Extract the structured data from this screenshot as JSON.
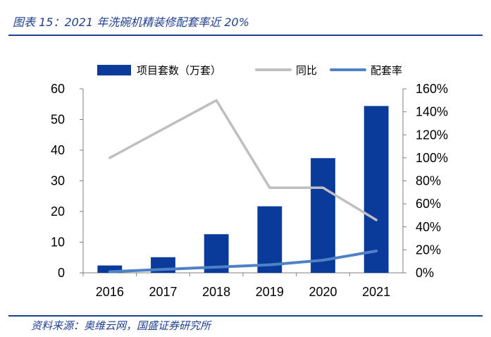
{
  "header": {
    "title": "图表 15：2021 年洗碗机精装修配套率近 20%"
  },
  "footer": {
    "source": "资料来源：奥维云网，国盛证券研究所"
  },
  "chart_data": {
    "type": "bar",
    "categories": [
      "2016",
      "2017",
      "2018",
      "2019",
      "2020",
      "2021"
    ],
    "series": [
      {
        "name": "项目套数（万套）",
        "type": "bar",
        "axis": "left",
        "values": [
          2.4,
          5.1,
          12.6,
          21.7,
          37.4,
          54.4
        ],
        "color": "#0A3A9A"
      },
      {
        "name": "同比",
        "type": "line",
        "axis": "right",
        "values": [
          1.0,
          1.25,
          1.5,
          0.74,
          0.74,
          0.46
        ],
        "color": "#BFBFBF"
      },
      {
        "name": "配套率",
        "type": "line",
        "axis": "right",
        "values": [
          0.01,
          0.03,
          0.05,
          0.07,
          0.11,
          0.19
        ],
        "color": "#4F81C7"
      }
    ],
    "left_axis": {
      "ylim": [
        0,
        60
      ],
      "ticks": [
        "0",
        "10",
        "20",
        "30",
        "40",
        "50",
        "60"
      ]
    },
    "right_axis": {
      "ylim": [
        0,
        1.6
      ],
      "ticks": [
        "0%",
        "20%",
        "40%",
        "60%",
        "80%",
        "100%",
        "120%",
        "140%",
        "160%"
      ]
    },
    "legend_position": "top",
    "grid": false
  }
}
